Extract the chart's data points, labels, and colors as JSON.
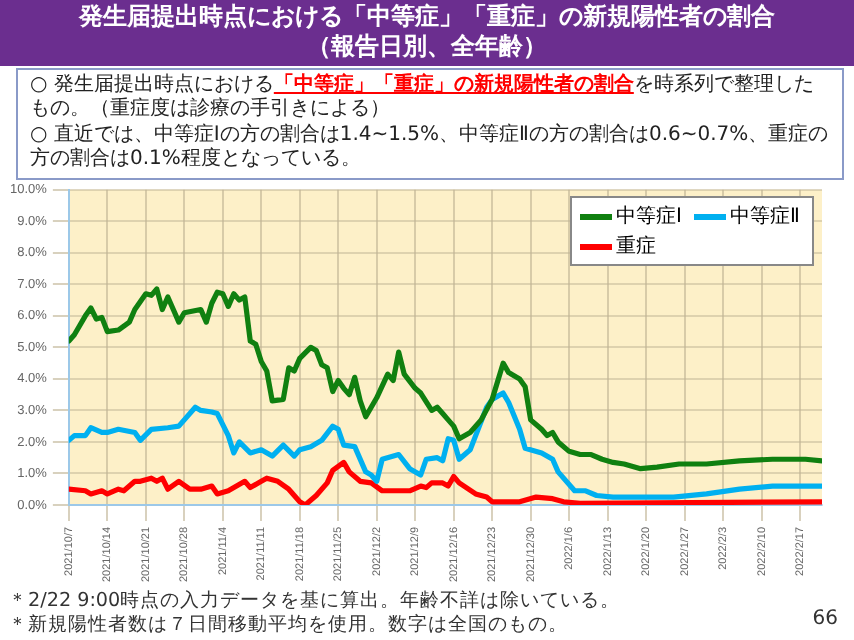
{
  "chart_data": {
    "type": "line",
    "title": "発生届提出時点における「中等症」「重症」の新規陽性者の割合",
    "subtitle": "（報告日別、全年齢）",
    "annotations": [
      "○ 発生届提出時点における",
      "「中等症」「重症」の新規陽性者の割合",
      "を時系列で整理したもの。（重症度は診療の手引きによる）",
      "○ 直近では、中等症Ⅰの方の割合は1.4~1.5%、中等症Ⅱの方の割合は0.6~0.7%、重症の方の割合は0.1%程度となっている。",
      "＊2/22 9:00時点の入力データを基に算出。年齢不詳は除いている。",
      "＊新規陽性者数は７日間移動平均を使用。数字は全国のもの。",
      "66"
    ],
    "xlim": [
      "2021-10-07",
      "2022-02-21"
    ],
    "xticks": [
      {
        "value": "2021-10-07",
        "label": "2021/10/7"
      },
      {
        "value": "2021-10-14",
        "label": "2021/10/14"
      },
      {
        "value": "2021-10-21",
        "label": "2021/10/21"
      },
      {
        "value": "2021-10-28",
        "label": "2021/10/28"
      },
      {
        "value": "2021-11-04",
        "label": "2021/11/4"
      },
      {
        "value": "2021-11-11",
        "label": "2021/11/11"
      },
      {
        "value": "2021-11-18",
        "label": "2021/11/18"
      },
      {
        "value": "2021-11-25",
        "label": "2021/11/25"
      },
      {
        "value": "2021-12-02",
        "label": "2021/12/2"
      },
      {
        "value": "2021-12-09",
        "label": "2021/12/9"
      },
      {
        "value": "2021-12-16",
        "label": "2021/12/16"
      },
      {
        "value": "2021-12-23",
        "label": "2021/12/23"
      },
      {
        "value": "2021-12-30",
        "label": "2021/12/30"
      },
      {
        "value": "2022-01-06",
        "label": "2022/1/6"
      },
      {
        "value": "2022-01-13",
        "label": "2022/1/13"
      },
      {
        "value": "2022-01-20",
        "label": "2022/1/20"
      },
      {
        "value": "2022-01-27",
        "label": "2022/1/27"
      },
      {
        "value": "2022-02-03",
        "label": "2022/2/3"
      },
      {
        "value": "2022-02-10",
        "label": "2022/2/10"
      },
      {
        "value": "2022-02-17",
        "label": "2022/2/17"
      }
    ],
    "ylim": [
      0,
      10
    ],
    "yticks": [
      {
        "value": 0,
        "label": "0.0%"
      },
      {
        "value": 1,
        "label": "1.0%"
      },
      {
        "value": 2,
        "label": "2.0%"
      },
      {
        "value": 3,
        "label": "3.0%"
      },
      {
        "value": 4,
        "label": "4.0%"
      },
      {
        "value": 5,
        "label": "5.0%"
      },
      {
        "value": 6,
        "label": "6.0%"
      },
      {
        "value": 7,
        "label": "7.0%"
      },
      {
        "value": 8,
        "label": "8.0%"
      },
      {
        "value": 9,
        "label": "9.0%"
      },
      {
        "value": 10,
        "label": "10.0%"
      }
    ],
    "grid": true,
    "legend": "top right",
    "marker": "none",
    "line_style": "solid",
    "series": [
      {
        "name": "中等症Ⅰ",
        "color": "#108010",
        "x": [
          "2021-10-07",
          "2021-10-08",
          "2021-10-10",
          "2021-10-11",
          "2021-10-12",
          "2021-10-13",
          "2021-10-14",
          "2021-10-16",
          "2021-10-18",
          "2021-10-19",
          "2021-10-21",
          "2021-10-22",
          "2021-10-23",
          "2021-10-24",
          "2021-10-25",
          "2021-10-26",
          "2021-10-27",
          "2021-10-28",
          "2021-10-31",
          "2021-11-01",
          "2021-11-02",
          "2021-11-03",
          "2021-11-04",
          "2021-11-05",
          "2021-11-06",
          "2021-11-07",
          "2021-11-08",
          "2021-11-09",
          "2021-11-10",
          "2021-11-11",
          "2021-11-12",
          "2021-11-13",
          "2021-11-15",
          "2021-11-16",
          "2021-11-17",
          "2021-11-18",
          "2021-11-20",
          "2021-11-21",
          "2021-11-22",
          "2021-11-23",
          "2021-11-24",
          "2021-11-25",
          "2021-11-26",
          "2021-11-27",
          "2021-11-28",
          "2021-11-29",
          "2021-11-30",
          "2021-12-01",
          "2021-12-02",
          "2021-12-04",
          "2021-12-05",
          "2021-12-06",
          "2021-12-07",
          "2021-12-09",
          "2021-12-10",
          "2021-12-12",
          "2021-12-13",
          "2021-12-14",
          "2021-12-15",
          "2021-12-16",
          "2021-12-17",
          "2021-12-19",
          "2021-12-21",
          "2021-12-23",
          "2021-12-25",
          "2021-12-26",
          "2021-12-28",
          "2021-12-29",
          "2021-12-30",
          "2022-01-01",
          "2022-01-02",
          "2022-01-03",
          "2022-01-04",
          "2022-01-06",
          "2022-01-08",
          "2022-01-10",
          "2022-01-12",
          "2022-01-14",
          "2022-01-16",
          "2022-01-19",
          "2022-01-22",
          "2022-01-26",
          "2022-01-31",
          "2022-02-06",
          "2022-02-12",
          "2022-02-18",
          "2022-02-21"
        ],
        "values": [
          5.2,
          5.4,
          6.0,
          6.25,
          5.9,
          5.95,
          5.5,
          5.55,
          5.8,
          6.2,
          6.7,
          6.65,
          6.85,
          6.2,
          6.6,
          6.2,
          5.8,
          6.1,
          6.2,
          5.8,
          6.4,
          6.75,
          6.7,
          6.3,
          6.7,
          6.5,
          6.6,
          5.2,
          5.1,
          4.55,
          4.25,
          3.3,
          3.35,
          4.35,
          4.25,
          4.65,
          5.0,
          4.9,
          4.45,
          4.35,
          3.6,
          3.95,
          3.7,
          3.5,
          4.05,
          3.3,
          2.8,
          3.1,
          3.4,
          4.15,
          3.95,
          4.85,
          4.15,
          3.7,
          3.55,
          3.0,
          3.1,
          2.9,
          2.7,
          2.5,
          2.1,
          2.3,
          2.7,
          3.35,
          4.5,
          4.2,
          4.0,
          3.75,
          2.7,
          2.4,
          2.2,
          2.3,
          2.0,
          1.7,
          1.6,
          1.6,
          1.45,
          1.35,
          1.3,
          1.15,
          1.2,
          1.3,
          1.3,
          1.4,
          1.45,
          1.45,
          1.4
        ]
      },
      {
        "name": "中等症Ⅱ",
        "color": "#00b0f0",
        "x": [
          "2021-10-07",
          "2021-10-08",
          "2021-10-10",
          "2021-10-11",
          "2021-10-13",
          "2021-10-14",
          "2021-10-16",
          "2021-10-19",
          "2021-10-20",
          "2021-10-22",
          "2021-10-25",
          "2021-10-27",
          "2021-10-30",
          "2021-10-31",
          "2021-11-02",
          "2021-11-03",
          "2021-11-05",
          "2021-11-06",
          "2021-11-07",
          "2021-11-09",
          "2021-11-11",
          "2021-11-13",
          "2021-11-15",
          "2021-11-17",
          "2021-11-18",
          "2021-11-20",
          "2021-11-22",
          "2021-11-24",
          "2021-11-25",
          "2021-11-26",
          "2021-11-28",
          "2021-11-30",
          "2021-12-01",
          "2021-12-02",
          "2021-12-03",
          "2021-12-06",
          "2021-12-08",
          "2021-12-10",
          "2021-12-11",
          "2021-12-13",
          "2021-12-14",
          "2021-12-15",
          "2021-12-16",
          "2021-12-17",
          "2021-12-19",
          "2021-12-20",
          "2021-12-22",
          "2021-12-23",
          "2021-12-25",
          "2021-12-26",
          "2021-12-28",
          "2021-12-29",
          "2022-01-01",
          "2022-01-03",
          "2022-01-04",
          "2022-01-07",
          "2022-01-09",
          "2022-01-11",
          "2022-01-14",
          "2022-01-19",
          "2022-01-25",
          "2022-01-31",
          "2022-02-06",
          "2022-02-12",
          "2022-02-18",
          "2022-02-21"
        ],
        "values": [
          2.05,
          2.2,
          2.2,
          2.45,
          2.3,
          2.3,
          2.4,
          2.3,
          2.05,
          2.4,
          2.45,
          2.5,
          3.1,
          3.0,
          2.95,
          2.9,
          2.2,
          1.65,
          2.0,
          1.65,
          1.75,
          1.55,
          1.9,
          1.55,
          1.75,
          1.85,
          2.05,
          2.5,
          2.4,
          1.9,
          1.85,
          1.05,
          0.95,
          0.75,
          1.45,
          1.6,
          1.15,
          0.95,
          1.45,
          1.5,
          1.4,
          2.1,
          2.05,
          1.45,
          1.75,
          2.2,
          3.1,
          3.35,
          3.55,
          3.25,
          2.4,
          1.8,
          1.65,
          1.45,
          1.05,
          0.45,
          0.45,
          0.3,
          0.25,
          0.25,
          0.25,
          0.35,
          0.5,
          0.6,
          0.6,
          0.6
        ]
      },
      {
        "name": "重症",
        "color": "#ff0000",
        "x": [
          "2021-10-07",
          "2021-10-10",
          "2021-10-11",
          "2021-10-13",
          "2021-10-14",
          "2021-10-16",
          "2021-10-17",
          "2021-10-19",
          "2021-10-20",
          "2021-10-22",
          "2021-10-23",
          "2021-10-24",
          "2021-10-25",
          "2021-10-27",
          "2021-10-29",
          "2021-10-31",
          "2021-11-02",
          "2021-11-03",
          "2021-11-05",
          "2021-11-08",
          "2021-11-09",
          "2021-11-11",
          "2021-11-12",
          "2021-11-14",
          "2021-11-16",
          "2021-11-18",
          "2021-11-19",
          "2021-11-21",
          "2021-11-23",
          "2021-11-24",
          "2021-11-26",
          "2021-11-27",
          "2021-11-29",
          "2021-12-01",
          "2021-12-03",
          "2021-12-05",
          "2021-12-08",
          "2021-12-10",
          "2021-12-11",
          "2021-12-12",
          "2021-12-14",
          "2021-12-15",
          "2021-12-16",
          "2021-12-17",
          "2021-12-20",
          "2021-12-22",
          "2021-12-23",
          "2021-12-28",
          "2021-12-31",
          "2022-01-03",
          "2022-01-05",
          "2022-01-08",
          "2022-02-21"
        ],
        "values": [
          0.5,
          0.45,
          0.35,
          0.45,
          0.35,
          0.5,
          0.45,
          0.75,
          0.75,
          0.85,
          0.75,
          0.85,
          0.5,
          0.75,
          0.5,
          0.5,
          0.6,
          0.35,
          0.45,
          0.75,
          0.55,
          0.75,
          0.85,
          0.75,
          0.5,
          0.1,
          0.0,
          0.3,
          0.7,
          1.1,
          1.35,
          1.05,
          0.75,
          0.7,
          0.45,
          0.45,
          0.45,
          0.6,
          0.55,
          0.7,
          0.7,
          0.6,
          0.9,
          0.7,
          0.35,
          0.25,
          0.1,
          0.1,
          0.25,
          0.2,
          0.1,
          0.05,
          0.1
        ]
      }
    ]
  }
}
